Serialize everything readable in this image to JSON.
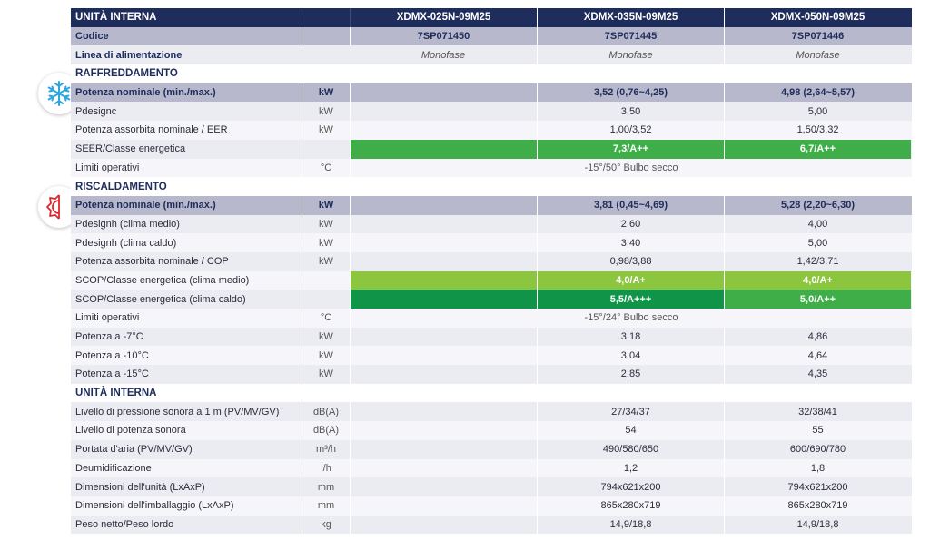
{
  "header": {
    "title": "UNITÀ INTERNA",
    "models": [
      "XDMX-025N-09M25",
      "XDMX-035N-09M25",
      "XDMX-050N-09M25"
    ]
  },
  "codice": {
    "label": "Codice",
    "values": [
      "7SP071450",
      "7SP071445",
      "7SP071446"
    ]
  },
  "linea": {
    "label": "Linea di alimentazione",
    "values": [
      "Monofase",
      "Monofase",
      "Monofase"
    ]
  },
  "cooling": {
    "title": "RAFFREDDAMENTO",
    "icon": "snowflake-icon",
    "rows": {
      "nominal": {
        "label": "Potenza nominale (min./max.)",
        "unit": "kW",
        "values": [
          "",
          "3,52 (0,76~4,25)",
          "4,98 (2,64~5,57)"
        ]
      },
      "pdesignc": {
        "label": "Pdesignc",
        "unit": "kW",
        "values": [
          "",
          "3,50",
          "5,00"
        ]
      },
      "eer": {
        "label": "Potenza assorbita nominale / EER",
        "unit": "kW",
        "values": [
          "",
          "1,00/3,52",
          "1,50/3,32"
        ]
      },
      "seer": {
        "label": "SEER/Classe energetica",
        "unit": "",
        "values": [
          "",
          "7,3/A++",
          "6,7/A++"
        ]
      },
      "limiti": {
        "label": "Limiti operativi",
        "unit": "°C",
        "value": "-15°/50° Bulbo secco"
      }
    }
  },
  "heating": {
    "title": "RISCALDAMENTO",
    "icon": "sun-heat-icon",
    "rows": {
      "nominal": {
        "label": "Potenza nominale (min./max.)",
        "unit": "kW",
        "values": [
          "",
          "3,81 (0,45~4,69)",
          "5,28 (2,20~6,30)"
        ]
      },
      "pdesignh_medio": {
        "label": "Pdesignh (clima medio)",
        "unit": "kW",
        "values": [
          "",
          "2,60",
          "4,00"
        ]
      },
      "pdesignh_caldo": {
        "label": "Pdesignh (clima caldo)",
        "unit": "kW",
        "values": [
          "",
          "3,40",
          "5,00"
        ]
      },
      "cop": {
        "label": "Potenza assorbita nominale / COP",
        "unit": "kW",
        "values": [
          "",
          "0,98/3,88",
          "1,42/3,71"
        ]
      },
      "scop_medio": {
        "label": "SCOP/Classe energetica (clima medio)",
        "unit": "",
        "values": [
          "",
          "4,0/A+",
          "4,0/A+"
        ]
      },
      "scop_caldo": {
        "label": "SCOP/Classe energetica (clima caldo)",
        "unit": "",
        "values": [
          "",
          "5,5/A+++",
          "5,0/A++"
        ]
      },
      "limiti": {
        "label": "Limiti operativi",
        "unit": "°C",
        "value": "-15°/24° Bulbo secco"
      },
      "p7": {
        "label": "Potenza a -7°C",
        "unit": "kW",
        "values": [
          "",
          "3,18",
          "4,86"
        ]
      },
      "p10": {
        "label": "Potenza a -10°C",
        "unit": "kW",
        "values": [
          "",
          "3,04",
          "4,64"
        ]
      },
      "p15": {
        "label": "Potenza a -15°C",
        "unit": "kW",
        "values": [
          "",
          "2,85",
          "4,35"
        ]
      }
    }
  },
  "indoor": {
    "title": "UNITÀ INTERNA",
    "rows": {
      "pressione": {
        "label": "Livello di pressione sonora a 1 m (PV/MV/GV)",
        "unit": "dB(A)",
        "values": [
          "",
          "27/34/37",
          "32/38/41"
        ]
      },
      "potenza_sonora": {
        "label": "Livello di potenza sonora",
        "unit": "dB(A)",
        "values": [
          "",
          "54",
          "55"
        ]
      },
      "portata": {
        "label": "Portata d'aria (PV/MV/GV)",
        "unit": "m³/h",
        "values": [
          "",
          "490/580/650",
          "600/690/780"
        ]
      },
      "deumid": {
        "label": "Deumidificazione",
        "unit": "l/h",
        "values": [
          "",
          "1,2",
          "1,8"
        ]
      },
      "dim_unita": {
        "label": "Dimensioni dell'unità (LxAxP)",
        "unit": "mm",
        "values": [
          "",
          "794x621x200",
          "794x621x200"
        ]
      },
      "dim_imballo": {
        "label": "Dimensioni dell'imballaggio (LxAxP)",
        "unit": "mm",
        "values": [
          "",
          "865x280x719",
          "865x280x719"
        ]
      },
      "peso": {
        "label": "Peso netto/Peso lordo",
        "unit": "kg",
        "values": [
          "",
          "14,9/18,8",
          "14,9/18,8"
        ]
      }
    }
  },
  "colors": {
    "header_navy": "#1f2d5c",
    "nominal_band": "#b8b8cc",
    "energy_light_green": "#8cc63f",
    "energy_mid_green": "#3fae49",
    "energy_dark_green": "#0f9448",
    "cooling_icon": "#2aa6e0",
    "heating_icon": "#e0262c"
  }
}
